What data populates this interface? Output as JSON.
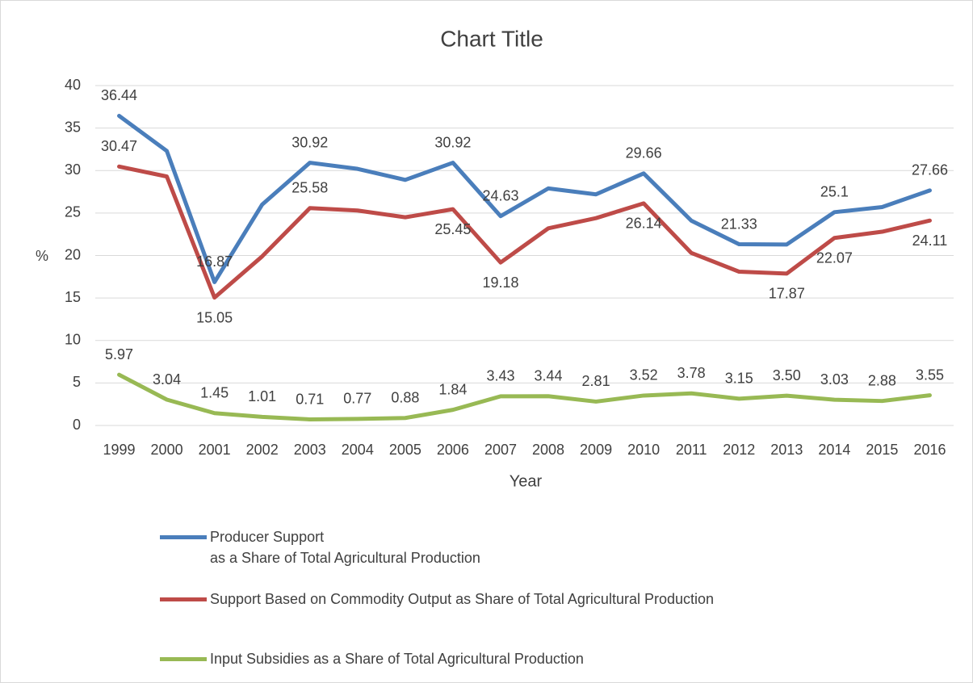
{
  "chart_data": {
    "type": "line",
    "title": "Chart Title",
    "x_label": "Year",
    "y_label": "%",
    "categories": [
      "1999",
      "2000",
      "2001",
      "2002",
      "2003",
      "2004",
      "2005",
      "2006",
      "2007",
      "2008",
      "2009",
      "2010",
      "2011",
      "2012",
      "2013",
      "2014",
      "2015",
      "2016"
    ],
    "ylim": [
      0,
      40
    ],
    "yticks": [
      0,
      5,
      10,
      15,
      20,
      25,
      30,
      35,
      40
    ],
    "grid": true,
    "series": [
      {
        "name": "Producer Support\nas a Share of Total Agricultural Production",
        "color": "#4a7ebb",
        "values": [
          36.44,
          32.3,
          16.87,
          26.0,
          30.92,
          30.2,
          28.9,
          30.92,
          24.63,
          27.9,
          27.2,
          29.66,
          24.1,
          21.33,
          21.3,
          25.1,
          25.7,
          27.66
        ],
        "value_labels": [
          "36.44",
          null,
          "16.87",
          null,
          "30.92",
          null,
          null,
          "30.92",
          "24.63",
          null,
          null,
          "29.66",
          null,
          "21.33",
          null,
          "25.1",
          null,
          "27.66"
        ]
      },
      {
        "name": "Support Based on Commodity Output as Share of Total Agricultural Production",
        "color": "#be4b48",
        "values": [
          30.47,
          29.3,
          15.05,
          19.9,
          25.58,
          25.3,
          24.5,
          25.45,
          19.18,
          23.2,
          24.4,
          26.14,
          20.3,
          18.1,
          17.87,
          22.07,
          22.8,
          24.11
        ],
        "value_labels": [
          "30.47",
          null,
          "15.05",
          null,
          "25.58",
          null,
          null,
          "25.45",
          "19.18",
          null,
          null,
          "26.14",
          null,
          null,
          "17.87",
          "22.07",
          null,
          "24.11"
        ]
      },
      {
        "name": "Input Subsidies as a Share of Total Agricultural Production",
        "color": "#98b954",
        "values": [
          5.97,
          3.04,
          1.45,
          1.01,
          0.71,
          0.77,
          0.88,
          1.84,
          3.43,
          3.44,
          2.81,
          3.52,
          3.78,
          3.15,
          3.5,
          3.03,
          2.88,
          3.55
        ],
        "value_labels": [
          "5.97",
          "3.04",
          "1.45",
          "1.01",
          "0.71",
          "0.77",
          "0.88",
          "1.84",
          "3.43",
          "3.44",
          "2.81",
          "3.52",
          "3.78",
          "3.15",
          "3.50",
          "3.03",
          "2.88",
          "3.55"
        ]
      }
    ]
  }
}
